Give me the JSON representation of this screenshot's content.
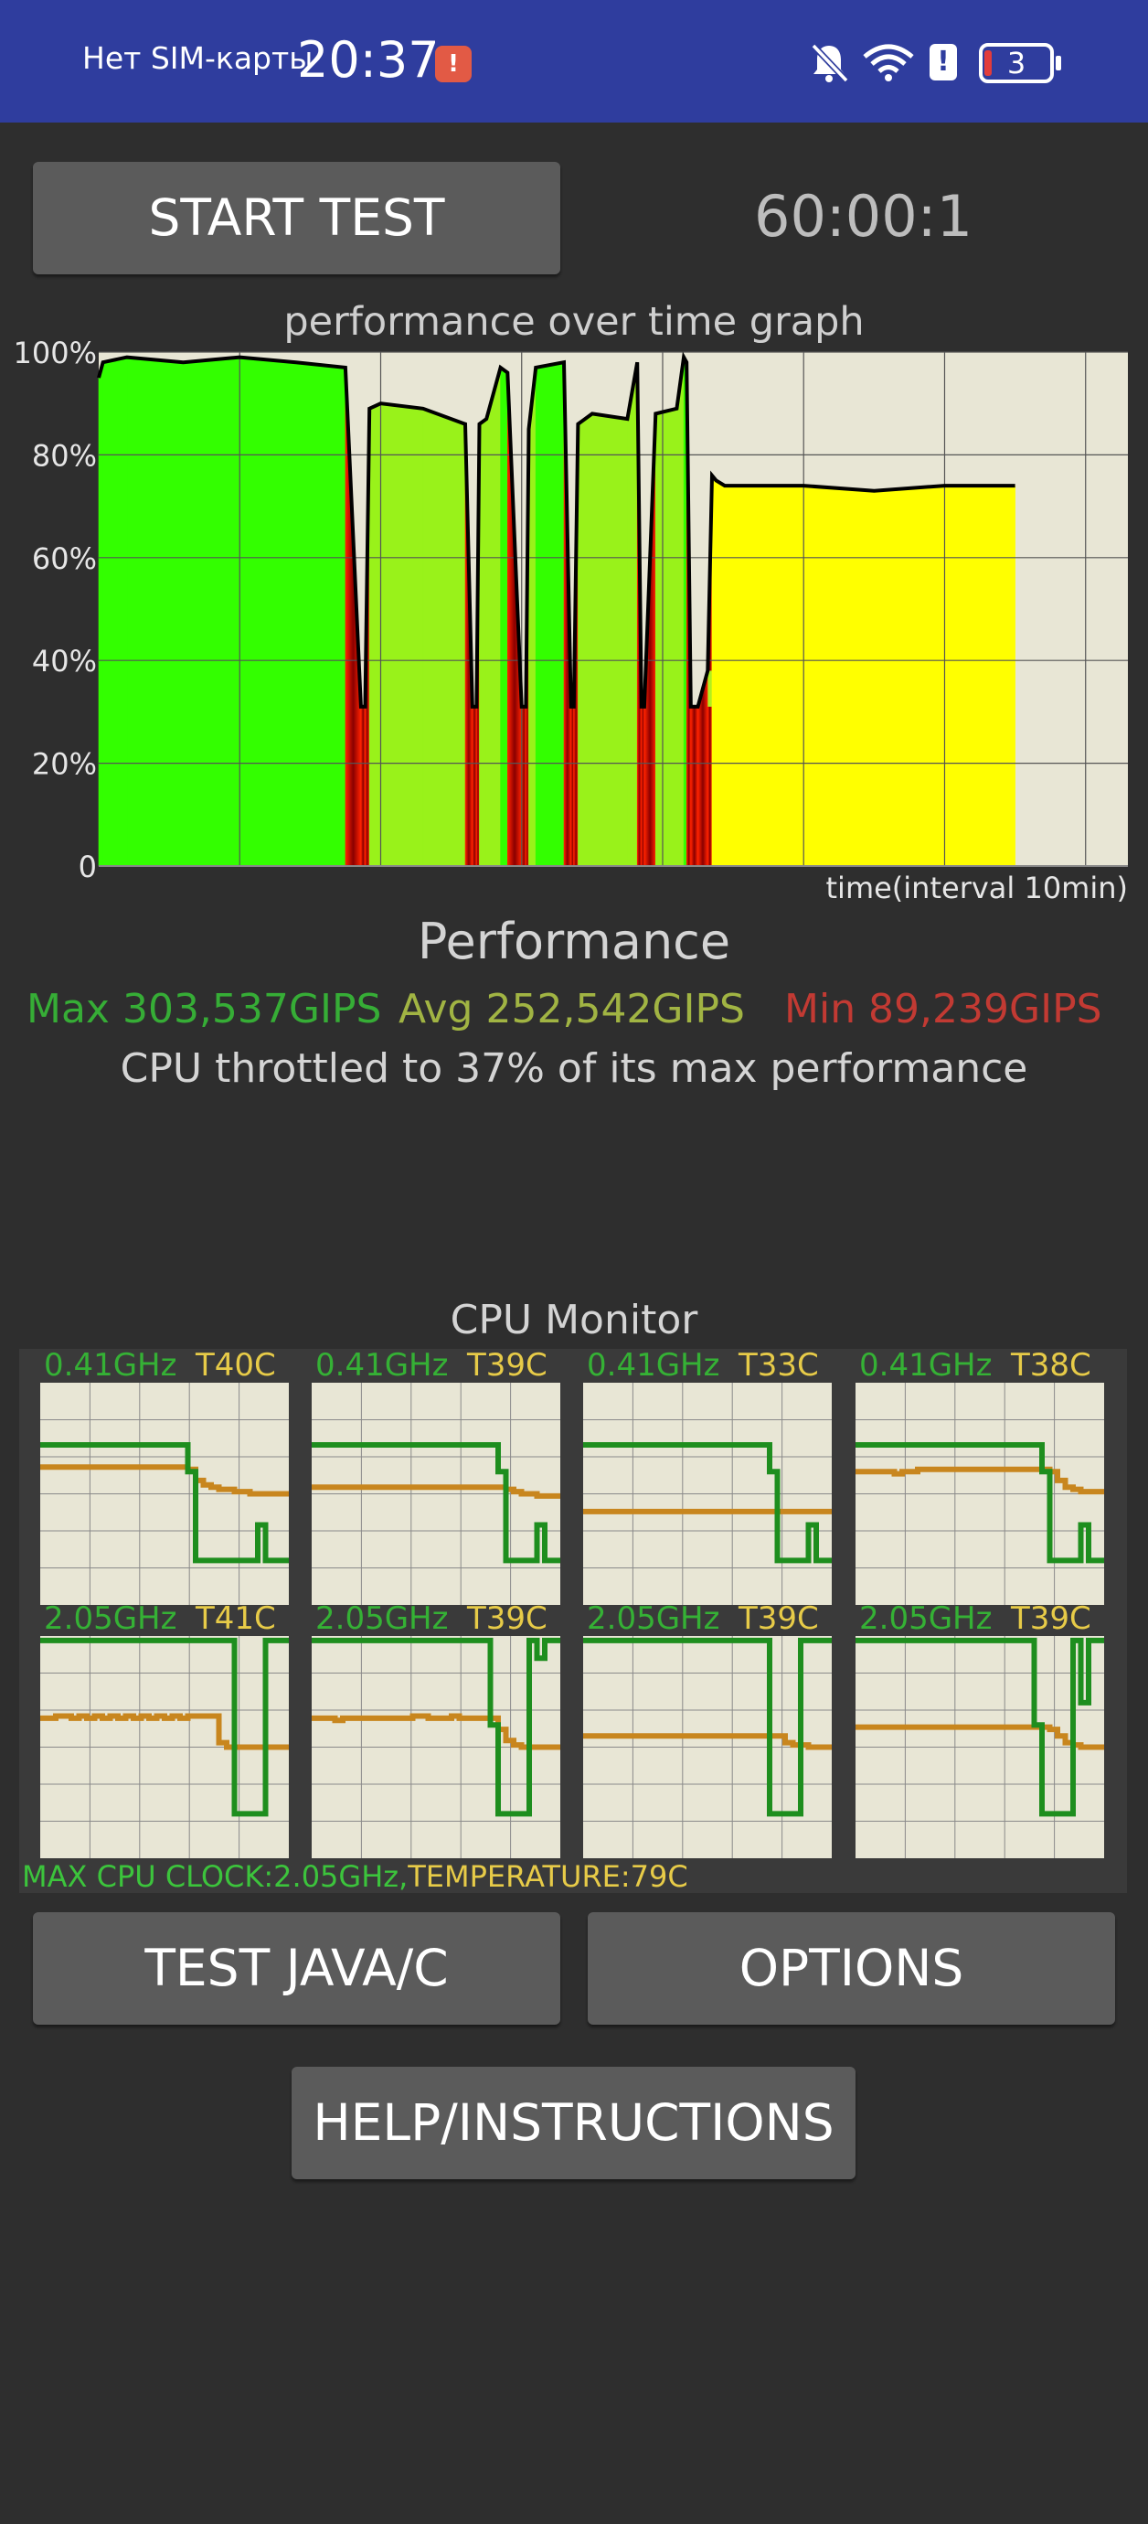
{
  "status_bar": {
    "carrier": "Нет SIM-карты",
    "time": "20:37",
    "battery_level": "3",
    "icons": [
      "alert-badge-icon",
      "mute-bell-icon",
      "wifi-icon",
      "alert-icon",
      "battery-icon"
    ]
  },
  "controls": {
    "start_test": "START TEST",
    "timer": "60:00:1",
    "test_java_c": "TEST JAVA/C",
    "options": "OPTIONS",
    "help": "HELP/INSTRUCTIONS"
  },
  "chart_data": {
    "type": "area",
    "title": "performance over time graph",
    "xlabel": "time(interval 10min)",
    "ylabel": "",
    "ylim": [
      0,
      100
    ],
    "yticks": [
      "0",
      "20%",
      "40%",
      "60%",
      "80%",
      "100%"
    ],
    "x_range": [
      0,
      7.3
    ],
    "series": [
      {
        "x": [
          0,
          0.03,
          0.2,
          0.6,
          1.0,
          1.4,
          1.75,
          1.86,
          1.89,
          1.92,
          2.0,
          2.3,
          2.6,
          2.65,
          2.68,
          2.7,
          2.75,
          2.85,
          2.9,
          3.0,
          3.03,
          3.05,
          3.1,
          3.3,
          3.35,
          3.37,
          3.4,
          3.5,
          3.75,
          3.82,
          3.85,
          3.87,
          3.95,
          4.1,
          4.15,
          4.17,
          4.2,
          4.25,
          4.32,
          4.35,
          4.38,
          4.44,
          4.6,
          5.0,
          5.5,
          6.0,
          6.4,
          6.5
        ],
        "y": [
          95,
          98,
          99,
          98,
          99,
          98,
          97,
          31,
          31,
          89,
          90,
          89,
          86,
          31,
          31,
          86,
          87,
          97,
          96,
          31,
          31,
          85,
          97,
          98,
          31,
          31,
          86,
          88,
          87,
          98,
          31,
          31,
          88,
          89,
          99,
          98,
          31,
          31,
          38,
          76,
          75,
          74,
          74,
          74,
          73,
          74,
          74,
          74
        ]
      }
    ],
    "grid": true
  },
  "performance": {
    "title": "Performance",
    "max": "Max 303,537GIPS",
    "avg": "Avg 252,542GIPS",
    "min": "Min 89,239GIPS",
    "throttle": "CPU throttled to 37% of its max performance"
  },
  "cpu_monitor": {
    "title": "CPU Monitor",
    "colors": {
      "frequency": "#1e8e1e",
      "temperature": "#c8861e"
    },
    "cores": [
      {
        "freq": "0.41GHz",
        "temp": "T40C",
        "freq_pct": [
          72,
          72,
          72,
          72,
          72,
          72,
          72,
          72,
          72,
          72,
          72,
          72,
          72,
          72,
          72,
          72,
          72,
          72,
          72,
          60,
          20,
          20,
          20,
          20,
          20,
          20,
          20,
          20,
          36,
          20,
          20,
          20
        ],
        "temp_pct": [
          62,
          62,
          62,
          62,
          62,
          62,
          62,
          62,
          62,
          62,
          62,
          62,
          62,
          62,
          62,
          62,
          62,
          62,
          62,
          61,
          56,
          54,
          53,
          52,
          52,
          51,
          51,
          50,
          50,
          50,
          50,
          50
        ]
      },
      {
        "freq": "0.41GHz",
        "temp": "T39C",
        "freq_pct": [
          72,
          72,
          72,
          72,
          72,
          72,
          72,
          72,
          72,
          72,
          72,
          72,
          72,
          72,
          72,
          72,
          72,
          72,
          72,
          72,
          72,
          72,
          72,
          72,
          60,
          20,
          20,
          20,
          20,
          36,
          20,
          20
        ],
        "temp_pct": [
          53,
          53,
          53,
          53,
          53,
          53,
          53,
          53,
          53,
          53,
          53,
          53,
          53,
          53,
          53,
          53,
          53,
          53,
          53,
          53,
          53,
          53,
          53,
          53,
          53,
          52,
          51,
          50,
          50,
          49,
          49,
          49
        ]
      },
      {
        "freq": "0.41GHz",
        "temp": "T33C",
        "freq_pct": [
          72,
          72,
          72,
          72,
          72,
          72,
          72,
          72,
          72,
          72,
          72,
          72,
          72,
          72,
          72,
          72,
          72,
          72,
          72,
          72,
          72,
          72,
          72,
          72,
          60,
          20,
          20,
          20,
          20,
          36,
          20,
          20
        ],
        "temp_pct": [
          42,
          42,
          42,
          42,
          42,
          42,
          42,
          42,
          42,
          42,
          42,
          42,
          42,
          42,
          42,
          42,
          42,
          42,
          42,
          42,
          42,
          42,
          42,
          42,
          42,
          42,
          42,
          42,
          42,
          42,
          42,
          42
        ]
      },
      {
        "freq": "0.41GHz",
        "temp": "T38C",
        "freq_pct": [
          72,
          72,
          72,
          72,
          72,
          72,
          72,
          72,
          72,
          72,
          72,
          72,
          72,
          72,
          72,
          72,
          72,
          72,
          72,
          72,
          72,
          72,
          72,
          72,
          60,
          20,
          20,
          20,
          20,
          36,
          20,
          20
        ],
        "temp_pct": [
          60,
          60,
          60,
          60,
          60,
          59,
          60,
          60,
          61,
          61,
          61,
          61,
          61,
          61,
          61,
          61,
          61,
          61,
          61,
          61,
          61,
          61,
          61,
          61,
          61,
          60,
          56,
          53,
          52,
          51,
          51,
          51
        ]
      },
      {
        "freq": "2.05GHz",
        "temp": "T41C",
        "freq_pct": [
          98,
          98,
          98,
          98,
          98,
          98,
          98,
          98,
          98,
          98,
          98,
          98,
          98,
          98,
          98,
          98,
          98,
          98,
          98,
          98,
          98,
          98,
          98,
          98,
          98,
          20,
          20,
          20,
          20,
          98,
          98,
          98
        ],
        "temp_pct": [
          63,
          63,
          64,
          64,
          63,
          64,
          63,
          64,
          63,
          64,
          63,
          64,
          63,
          64,
          63,
          64,
          63,
          64,
          63,
          64,
          64,
          64,
          64,
          52,
          50,
          50,
          50,
          50,
          50,
          50,
          50,
          50
        ]
      },
      {
        "freq": "2.05GHz",
        "temp": "T39C",
        "freq_pct": [
          98,
          98,
          98,
          98,
          98,
          98,
          98,
          98,
          98,
          98,
          98,
          98,
          98,
          98,
          98,
          98,
          98,
          98,
          98,
          98,
          98,
          98,
          98,
          60,
          20,
          20,
          20,
          20,
          98,
          90,
          98,
          98
        ],
        "temp_pct": [
          63,
          63,
          63,
          62,
          63,
          63,
          63,
          63,
          63,
          63,
          63,
          63,
          63,
          64,
          64,
          63,
          63,
          63,
          64,
          63,
          63,
          63,
          63,
          63,
          58,
          53,
          51,
          50,
          50,
          50,
          50,
          50
        ]
      },
      {
        "freq": "2.05GHz",
        "temp": "T39C",
        "freq_pct": [
          98,
          98,
          98,
          98,
          98,
          98,
          98,
          98,
          98,
          98,
          98,
          98,
          98,
          98,
          98,
          98,
          98,
          98,
          98,
          98,
          98,
          98,
          98,
          98,
          20,
          20,
          20,
          20,
          98,
          98,
          98,
          98
        ],
        "temp_pct": [
          55,
          55,
          55,
          55,
          55,
          55,
          55,
          55,
          55,
          55,
          55,
          55,
          55,
          55,
          55,
          55,
          55,
          55,
          55,
          55,
          55,
          55,
          55,
          55,
          55,
          55,
          52,
          51,
          51,
          50,
          50,
          50
        ]
      },
      {
        "freq": "2.05GHz",
        "temp": "T39C",
        "freq_pct": [
          98,
          98,
          98,
          98,
          98,
          98,
          98,
          98,
          98,
          98,
          98,
          98,
          98,
          98,
          98,
          98,
          98,
          98,
          98,
          98,
          98,
          98,
          98,
          60,
          20,
          20,
          20,
          20,
          98,
          70,
          98,
          98
        ],
        "temp_pct": [
          59,
          59,
          59,
          59,
          59,
          59,
          59,
          59,
          59,
          59,
          59,
          59,
          59,
          59,
          59,
          59,
          59,
          59,
          59,
          59,
          59,
          59,
          59,
          59,
          59,
          58,
          55,
          52,
          51,
          50,
          50,
          50
        ]
      }
    ],
    "max_clock": "MAX CPU CLOCK:2.05GHz,",
    "max_temperature": "TEMPERATURE:79C"
  }
}
